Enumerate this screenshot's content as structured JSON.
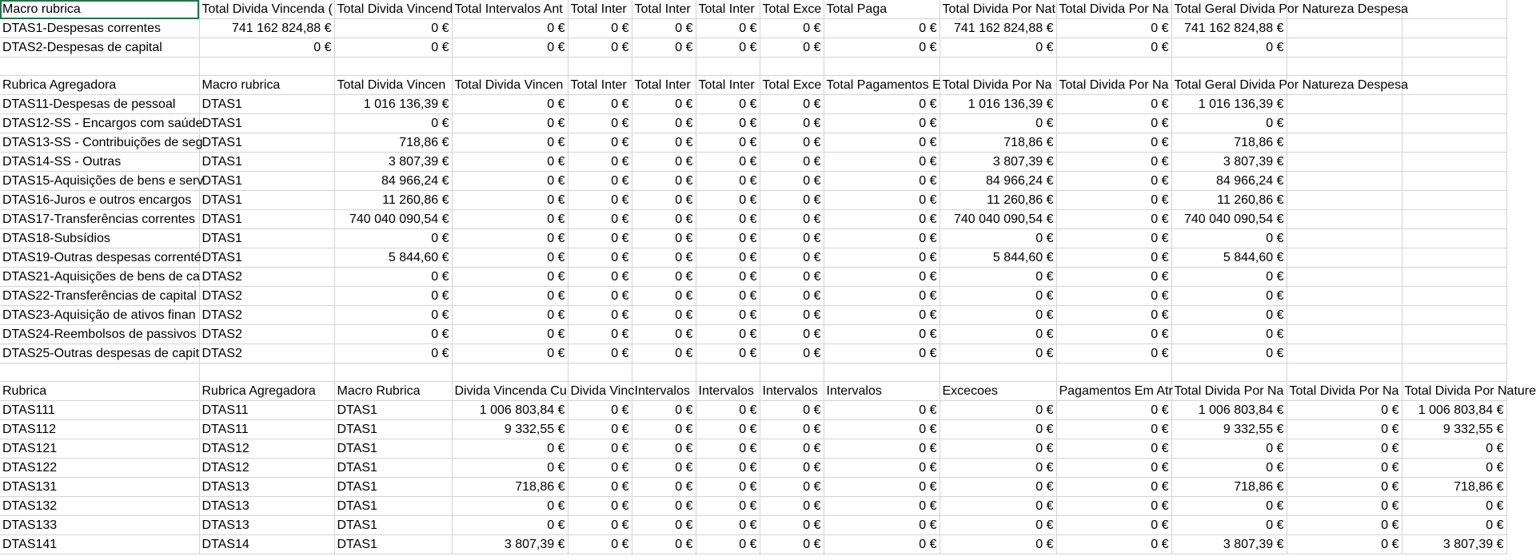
{
  "sheet": {
    "section1": {
      "header": [
        "Macro rubrica",
        "Total Divida Vincenda (",
        "Total Divida Vincend",
        "Total Intervalos Ant",
        "Total Inter",
        "Total Inter",
        "Total Inter",
        "Total Exce",
        "Total Paga",
        "Total Divida Por Nat",
        "Total Divida Por Na",
        "Total Geral Divida Por Natureza Despesa",
        "",
        ""
      ],
      "rows": [
        [
          "DTAS1-Despesas correntes",
          "741 162 824,88 €",
          "0 €",
          "0 €",
          "0 €",
          "0 €",
          "0 €",
          "0 €",
          "0 €",
          "741 162 824,88 €",
          "0 €",
          "741 162 824,88 €",
          "",
          ""
        ],
        [
          "DTAS2-Despesas de capital",
          "0 €",
          "0 €",
          "0 €",
          "0 €",
          "0 €",
          "0 €",
          "0 €",
          "0 €",
          "0 €",
          "0 €",
          "0 €",
          "",
          ""
        ]
      ]
    },
    "section2": {
      "header": [
        "Rubrica Agregadora",
        "Macro rubrica",
        "Total Divida Vincen",
        "Total Divida Vincen",
        "Total Inter",
        "Total Inter",
        "Total Inter",
        "Total Exce",
        "Total Pagamentos E",
        "Total Divida Por Na",
        "Total Divida Por Na",
        "Total Geral Divida Por Natureza Despesa",
        "",
        ""
      ],
      "rows": [
        [
          "DTAS11-Despesas de pessoal",
          "DTAS1",
          "1 016 136,39 €",
          "0 €",
          "0 €",
          "0 €",
          "0 €",
          "0 €",
          "0 €",
          "1 016 136,39 €",
          "0 €",
          "1 016 136,39 €",
          ""
        ],
        [
          "DTAS12-SS - Encargos com saúde",
          "DTAS1",
          "0 €",
          "0 €",
          "0 €",
          "0 €",
          "0 €",
          "0 €",
          "0 €",
          "0 €",
          "0 €",
          "0 €",
          ""
        ],
        [
          "DTAS13-SS - Contribuições de seg",
          "DTAS1",
          "718,86 €",
          "0 €",
          "0 €",
          "0 €",
          "0 €",
          "0 €",
          "0 €",
          "718,86 €",
          "0 €",
          "718,86 €",
          ""
        ],
        [
          "DTAS14-SS - Outras",
          "DTAS1",
          "3 807,39 €",
          "0 €",
          "0 €",
          "0 €",
          "0 €",
          "0 €",
          "0 €",
          "3 807,39 €",
          "0 €",
          "3 807,39 €",
          ""
        ],
        [
          "DTAS15-Aquisições de bens e serv",
          "DTAS1",
          "84 966,24 €",
          "0 €",
          "0 €",
          "0 €",
          "0 €",
          "0 €",
          "0 €",
          "84 966,24 €",
          "0 €",
          "84 966,24 €",
          ""
        ],
        [
          "DTAS16-Juros e outros encargos",
          "DTAS1",
          "11 260,86 €",
          "0 €",
          "0 €",
          "0 €",
          "0 €",
          "0 €",
          "0 €",
          "11 260,86 €",
          "0 €",
          "11 260,86 €",
          ""
        ],
        [
          "DTAS17-Transferências correntes",
          "DTAS1",
          "740 040 090,54 €",
          "0 €",
          "0 €",
          "0 €",
          "0 €",
          "0 €",
          "0 €",
          "740 040 090,54 €",
          "0 €",
          "740 040 090,54 €",
          ""
        ],
        [
          "DTAS18-Subsídios",
          "DTAS1",
          "0 €",
          "0 €",
          "0 €",
          "0 €",
          "0 €",
          "0 €",
          "0 €",
          "0 €",
          "0 €",
          "0 €",
          ""
        ],
        [
          "DTAS19-Outras despesas correnté",
          "DTAS1",
          "5 844,60 €",
          "0 €",
          "0 €",
          "0 €",
          "0 €",
          "0 €",
          "0 €",
          "5 844,60 €",
          "0 €",
          "5 844,60 €",
          ""
        ],
        [
          "DTAS21-Aquisições de bens de ca",
          "DTAS2",
          "0 €",
          "0 €",
          "0 €",
          "0 €",
          "0 €",
          "0 €",
          "0 €",
          "0 €",
          "0 €",
          "0 €",
          ""
        ],
        [
          "DTAS22-Transferências de capital",
          "DTAS2",
          "0 €",
          "0 €",
          "0 €",
          "0 €",
          "0 €",
          "0 €",
          "0 €",
          "0 €",
          "0 €",
          "0 €",
          ""
        ],
        [
          "DTAS23-Aquisição de ativos finan",
          "DTAS2",
          "0 €",
          "0 €",
          "0 €",
          "0 €",
          "0 €",
          "0 €",
          "0 €",
          "0 €",
          "0 €",
          "0 €",
          ""
        ],
        [
          "DTAS24-Reembolsos de passivos",
          "DTAS2",
          "0 €",
          "0 €",
          "0 €",
          "0 €",
          "0 €",
          "0 €",
          "0 €",
          "0 €",
          "0 €",
          "0 €",
          ""
        ],
        [
          "DTAS25-Outras despesas de capit",
          "DTAS2",
          "0 €",
          "0 €",
          "0 €",
          "0 €",
          "0 €",
          "0 €",
          "0 €",
          "0 €",
          "0 €",
          "0 €",
          ""
        ]
      ]
    },
    "section3": {
      "header": [
        "Rubrica",
        "Rubrica Agregadora",
        "Macro Rubrica",
        "Divida Vincenda Cu",
        "Divida Vinc",
        "Intervalos",
        "Intervalos",
        "Intervalos",
        "Intervalos",
        "Excecoes",
        "Pagamentos Em Atr",
        "Total Divida Por Na",
        "Total Divida Por Na",
        "Total Divida Por Nature"
      ],
      "rows": [
        [
          "DTAS111",
          "DTAS11",
          "DTAS1",
          "1 006 803,84 €",
          "0 €",
          "0 €",
          "0 €",
          "0 €",
          "0 €",
          "0 €",
          "0 €",
          "1 006 803,84 €",
          "0 €",
          "1 006 803,84 €"
        ],
        [
          "DTAS112",
          "DTAS11",
          "DTAS1",
          "9 332,55 €",
          "0 €",
          "0 €",
          "0 €",
          "0 €",
          "0 €",
          "0 €",
          "0 €",
          "9 332,55 €",
          "0 €",
          "9 332,55 €"
        ],
        [
          "DTAS121",
          "DTAS12",
          "DTAS1",
          "0 €",
          "0 €",
          "0 €",
          "0 €",
          "0 €",
          "0 €",
          "0 €",
          "0 €",
          "0 €",
          "0 €",
          "0 €"
        ],
        [
          "DTAS122",
          "DTAS12",
          "DTAS1",
          "0 €",
          "0 €",
          "0 €",
          "0 €",
          "0 €",
          "0 €",
          "0 €",
          "0 €",
          "0 €",
          "0 €",
          "0 €"
        ],
        [
          "DTAS131",
          "DTAS13",
          "DTAS1",
          "718,86 €",
          "0 €",
          "0 €",
          "0 €",
          "0 €",
          "0 €",
          "0 €",
          "0 €",
          "718,86 €",
          "0 €",
          "718,86 €"
        ],
        [
          "DTAS132",
          "DTAS13",
          "DTAS1",
          "0 €",
          "0 €",
          "0 €",
          "0 €",
          "0 €",
          "0 €",
          "0 €",
          "0 €",
          "0 €",
          "0 €",
          "0 €"
        ],
        [
          "DTAS133",
          "DTAS13",
          "DTAS1",
          "0 €",
          "0 €",
          "0 €",
          "0 €",
          "0 €",
          "0 €",
          "0 €",
          "0 €",
          "0 €",
          "0 €",
          "0 €"
        ],
        [
          "DTAS141",
          "DTAS14",
          "DTAS1",
          "3 807,39 €",
          "0 €",
          "0 €",
          "0 €",
          "0 €",
          "0 €",
          "0 €",
          "0 €",
          "3 807,39 €",
          "0 €",
          "3 807,39 €"
        ]
      ]
    }
  }
}
